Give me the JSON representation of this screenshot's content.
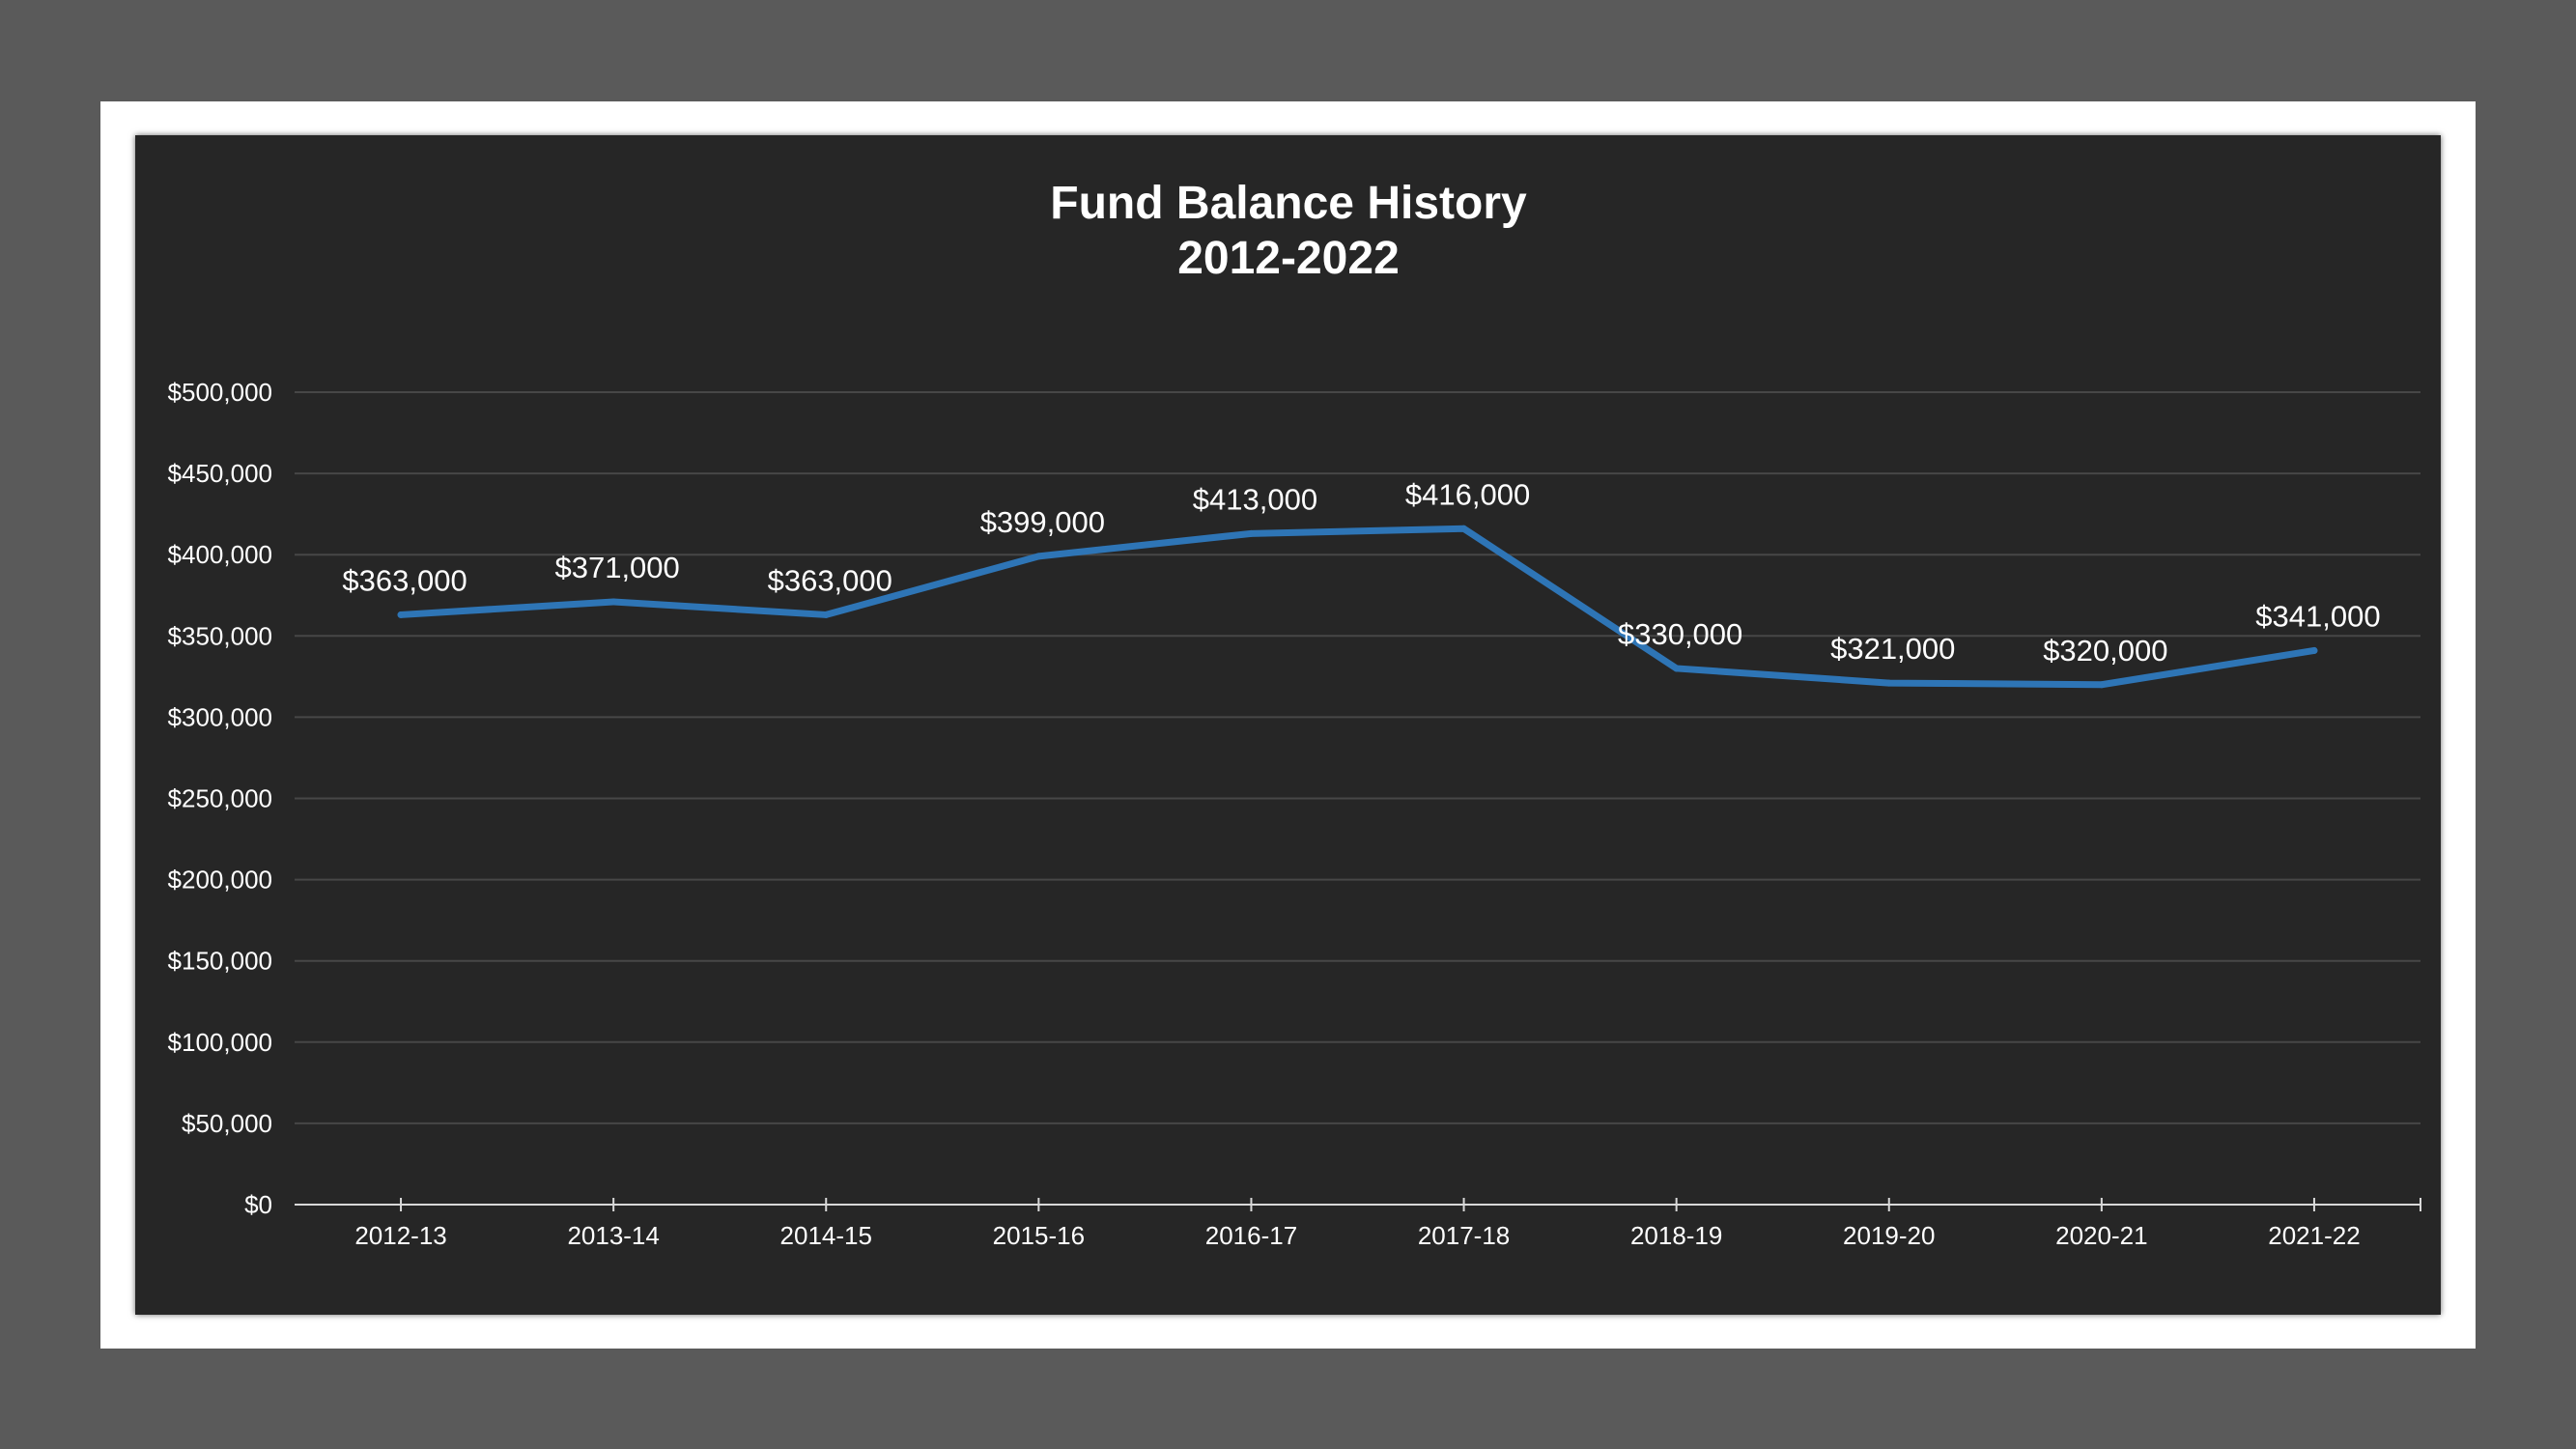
{
  "chart_data": {
    "type": "line",
    "title": "Fund Balance History",
    "subtitle": "2012-2022",
    "xlabel": "",
    "ylabel": "",
    "categories": [
      "2012-13",
      "2013-14",
      "2014-15",
      "2015-16",
      "2016-17",
      "2017-18",
      "2018-19",
      "2019-20",
      "2020-21",
      "2021-22"
    ],
    "series": [
      {
        "values": [
          363000,
          371000,
          363000,
          399000,
          413000,
          416000,
          330000,
          321000,
          320000,
          341000
        ]
      }
    ],
    "data_labels": [
      "$363,000",
      "$371,000",
      "$363,000",
      "$399,000",
      "$413,000",
      "$416,000",
      "$330,000",
      "$321,000",
      "$320,000",
      "$341,000"
    ],
    "ylim": [
      0,
      500000
    ],
    "y_ticks": [
      0,
      50000,
      100000,
      150000,
      200000,
      250000,
      300000,
      350000,
      400000,
      450000,
      500000
    ],
    "y_tick_labels": [
      "$0",
      "$50,000",
      "$100,000",
      "$150,000",
      "$200,000",
      "$250,000",
      "$300,000",
      "$350,000",
      "$400,000",
      "$450,000",
      "$500,000"
    ],
    "grid": true,
    "legend": "none",
    "colors": {
      "line": "#2e75b6",
      "background": "#262626",
      "grid": "#474747",
      "text": "#ffffff"
    }
  }
}
